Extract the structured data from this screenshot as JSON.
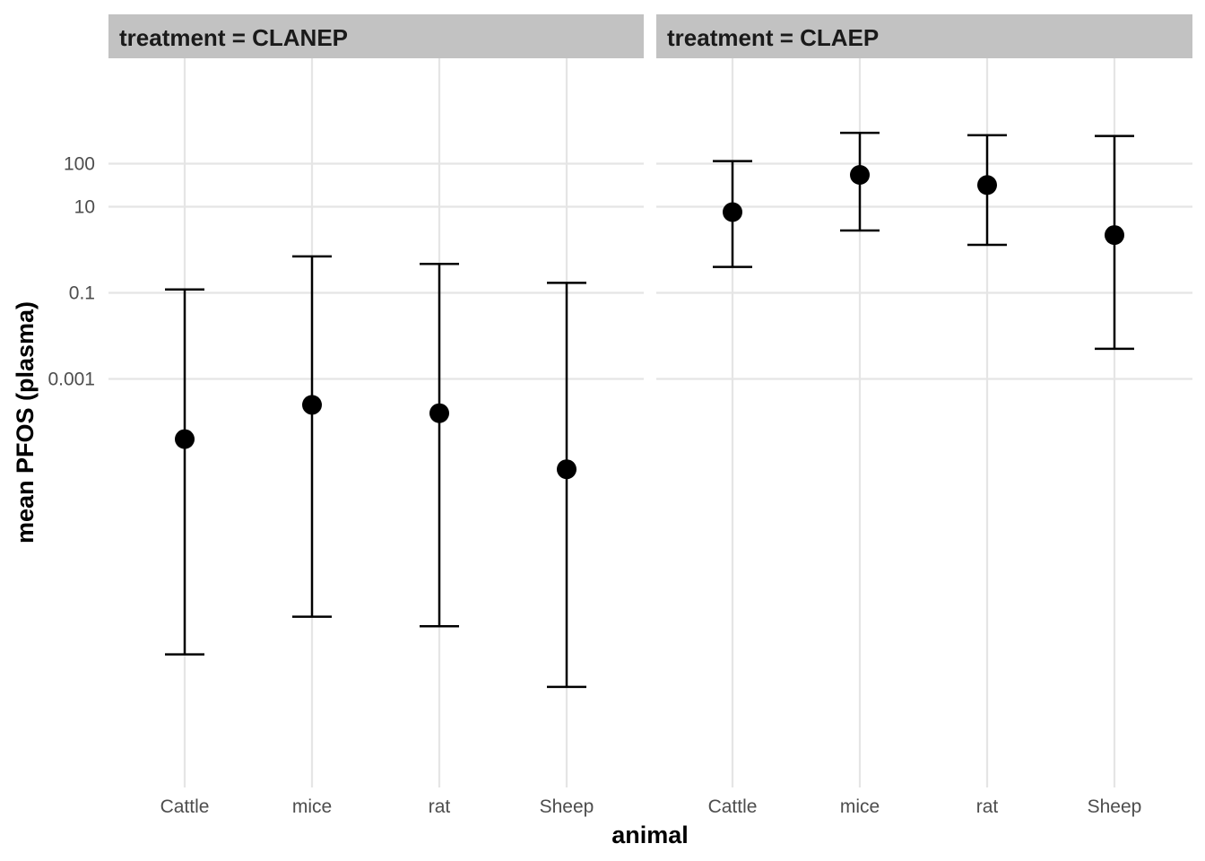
{
  "chart_data": {
    "type": "scatter",
    "subtype": "point-with-errorbars, faceted",
    "xlabel": "animal",
    "ylabel": "mean PFOS (plasma)",
    "y_scale": "log10",
    "y_ticks": [
      0.001,
      0.1,
      10,
      100
    ],
    "y_tick_labels": [
      "0.001",
      "0.1",
      "10",
      "100"
    ],
    "ylim": [
      1e-11,
      2000
    ],
    "categories": [
      "Cattle",
      "mice",
      "rat",
      "Sheep"
    ],
    "grid": true,
    "legend": "none",
    "facets": [
      {
        "label": "treatment = CLANEP",
        "mean": [
          4e-05,
          0.00025,
          0.00016,
          8e-06
        ],
        "lower": [
          4e-10,
          3e-09,
          1.8e-09,
          7e-11
        ],
        "upper": [
          0.12,
          0.7,
          0.47,
          0.17
        ]
      },
      {
        "label": "treatment = CLAEP",
        "mean": [
          7.5,
          55,
          32,
          2.2
        ],
        "lower": [
          0.4,
          2.8,
          1.3,
          0.005
        ],
        "upper": [
          115,
          520,
          460,
          440
        ]
      }
    ]
  },
  "colors": {
    "strip_fill": "#c2c2c2",
    "grid": "#e5e5e5",
    "tick_text": "#4d4d4d",
    "marks": "#000000"
  }
}
